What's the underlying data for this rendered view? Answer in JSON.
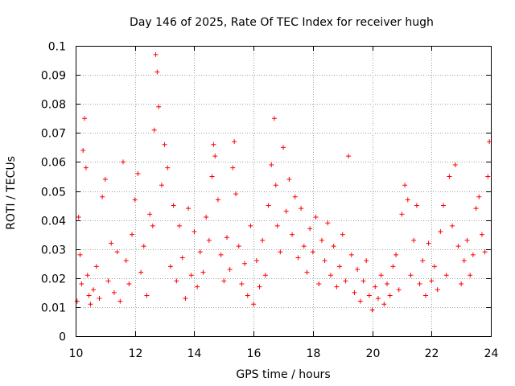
{
  "chart_data": {
    "type": "scatter",
    "title": "Day 146 of 2025, Rate Of TEC Index for receiver hugh",
    "xlabel": "GPS time / hours",
    "ylabel": "ROTI / TECUs",
    "xlim": [
      10,
      24
    ],
    "ylim": [
      0,
      0.1
    ],
    "grid": true,
    "marker": "+",
    "color": "#ff0000",
    "x_ticks": [
      "10",
      "12",
      "14",
      "16",
      "18",
      "20",
      "22",
      "24"
    ],
    "y_ticks": [
      "0",
      "0.01",
      "0.02",
      "0.03",
      "0.04",
      "0.05",
      "0.06",
      "0.07",
      "0.08",
      "0.09",
      "0.1"
    ],
    "series": [
      {
        "name": "ROTI",
        "x": [
          10.05,
          10.1,
          10.15,
          10.2,
          10.25,
          10.3,
          10.35,
          10.4,
          10.45,
          10.5,
          10.6,
          10.7,
          10.8,
          10.9,
          11.0,
          11.1,
          11.2,
          11.3,
          11.4,
          11.5,
          11.6,
          11.7,
          11.8,
          11.9,
          12.0,
          12.1,
          12.2,
          12.3,
          12.4,
          12.5,
          12.6,
          12.65,
          12.7,
          12.75,
          12.8,
          12.9,
          13.0,
          13.1,
          13.2,
          13.3,
          13.4,
          13.5,
          13.6,
          13.7,
          13.8,
          13.9,
          14.0,
          14.1,
          14.2,
          14.3,
          14.4,
          14.5,
          14.6,
          14.65,
          14.7,
          14.8,
          14.9,
          15.0,
          15.1,
          15.2,
          15.3,
          15.35,
          15.4,
          15.5,
          15.6,
          15.7,
          15.8,
          15.9,
          16.0,
          16.1,
          16.2,
          16.3,
          16.4,
          16.5,
          16.6,
          16.7,
          16.75,
          16.8,
          16.9,
          17.0,
          17.1,
          17.2,
          17.3,
          17.4,
          17.5,
          17.6,
          17.7,
          17.8,
          17.9,
          18.0,
          18.1,
          18.2,
          18.3,
          18.4,
          18.5,
          18.6,
          18.7,
          18.8,
          18.9,
          19.0,
          19.1,
          19.2,
          19.3,
          19.4,
          19.5,
          19.6,
          19.7,
          19.8,
          19.9,
          20.0,
          20.1,
          20.2,
          20.3,
          20.4,
          20.5,
          20.6,
          20.7,
          20.8,
          20.9,
          21.0,
          21.1,
          21.2,
          21.3,
          21.4,
          21.5,
          21.6,
          21.7,
          21.8,
          21.9,
          22.0,
          22.1,
          22.2,
          22.3,
          22.4,
          22.5,
          22.6,
          22.7,
          22.8,
          22.9,
          23.0,
          23.1,
          23.2,
          23.3,
          23.4,
          23.5,
          23.6,
          23.7,
          23.8,
          23.9,
          23.95
        ],
        "y": [
          0.012,
          0.041,
          0.028,
          0.018,
          0.064,
          0.075,
          0.058,
          0.021,
          0.014,
          0.011,
          0.016,
          0.024,
          0.013,
          0.048,
          0.054,
          0.019,
          0.032,
          0.015,
          0.029,
          0.012,
          0.06,
          0.026,
          0.018,
          0.035,
          0.047,
          0.056,
          0.022,
          0.031,
          0.014,
          0.042,
          0.038,
          0.071,
          0.097,
          0.091,
          0.079,
          0.052,
          0.066,
          0.058,
          0.024,
          0.045,
          0.019,
          0.038,
          0.027,
          0.013,
          0.044,
          0.021,
          0.036,
          0.017,
          0.029,
          0.022,
          0.041,
          0.033,
          0.055,
          0.066,
          0.062,
          0.047,
          0.028,
          0.019,
          0.034,
          0.023,
          0.058,
          0.067,
          0.049,
          0.031,
          0.018,
          0.025,
          0.014,
          0.038,
          0.011,
          0.026,
          0.017,
          0.033,
          0.021,
          0.045,
          0.059,
          0.075,
          0.052,
          0.038,
          0.029,
          0.065,
          0.043,
          0.054,
          0.035,
          0.048,
          0.027,
          0.044,
          0.031,
          0.022,
          0.037,
          0.029,
          0.041,
          0.018,
          0.033,
          0.026,
          0.039,
          0.021,
          0.031,
          0.017,
          0.024,
          0.035,
          0.019,
          0.062,
          0.028,
          0.015,
          0.023,
          0.012,
          0.019,
          0.026,
          0.014,
          0.009,
          0.017,
          0.013,
          0.021,
          0.011,
          0.018,
          0.014,
          0.024,
          0.028,
          0.016,
          0.042,
          0.052,
          0.047,
          0.021,
          0.033,
          0.045,
          0.018,
          0.026,
          0.014,
          0.032,
          0.019,
          0.024,
          0.016,
          0.036,
          0.045,
          0.021,
          0.055,
          0.038,
          0.059,
          0.031,
          0.018,
          0.026,
          0.033,
          0.021,
          0.028,
          0.044,
          0.048,
          0.035,
          0.029,
          0.055,
          0.067
        ]
      }
    ]
  }
}
